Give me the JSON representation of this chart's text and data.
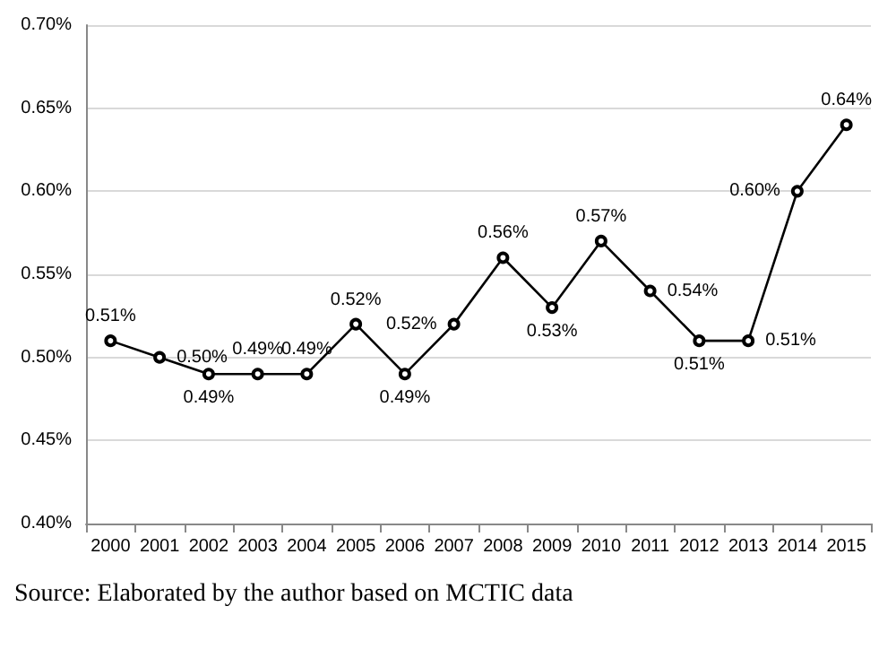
{
  "chart_data": {
    "type": "line",
    "categories": [
      "2000",
      "2001",
      "2002",
      "2003",
      "2004",
      "2005",
      "2006",
      "2007",
      "2008",
      "2009",
      "2010",
      "2011",
      "2012",
      "2013",
      "2014",
      "2015"
    ],
    "series": [
      {
        "color": "#000000",
        "values": [
          0.51,
          0.5,
          0.49,
          0.49,
          0.49,
          0.52,
          0.49,
          0.52,
          0.56,
          0.53,
          0.57,
          0.54,
          0.51,
          0.51,
          0.6,
          0.64
        ],
        "value_labels": [
          "0.51%",
          "0.50%",
          "0.49%",
          "0.49%",
          "0.49%",
          "0.52%",
          "0.49%",
          "0.52%",
          "0.56%",
          "0.53%",
          "0.57%",
          "0.54%",
          "0.51%",
          "0.51%",
          "0.60%",
          "0.64%"
        ]
      }
    ],
    "ylim": [
      0.4,
      0.7
    ],
    "yticks": [
      {
        "value": 0.4,
        "label": "0.40%"
      },
      {
        "value": 0.45,
        "label": "0.45%"
      },
      {
        "value": 0.5,
        "label": "0.50%"
      },
      {
        "value": 0.55,
        "label": "0.55%"
      },
      {
        "value": 0.6,
        "label": "0.60%"
      },
      {
        "value": 0.65,
        "label": "0.65%"
      },
      {
        "value": 0.7,
        "label": "0.70%"
      }
    ],
    "grid": "y",
    "marker": "circle",
    "line_style": "solid",
    "annotations": [
      "Source: Elaborated by the author based on MCTIC data"
    ]
  }
}
